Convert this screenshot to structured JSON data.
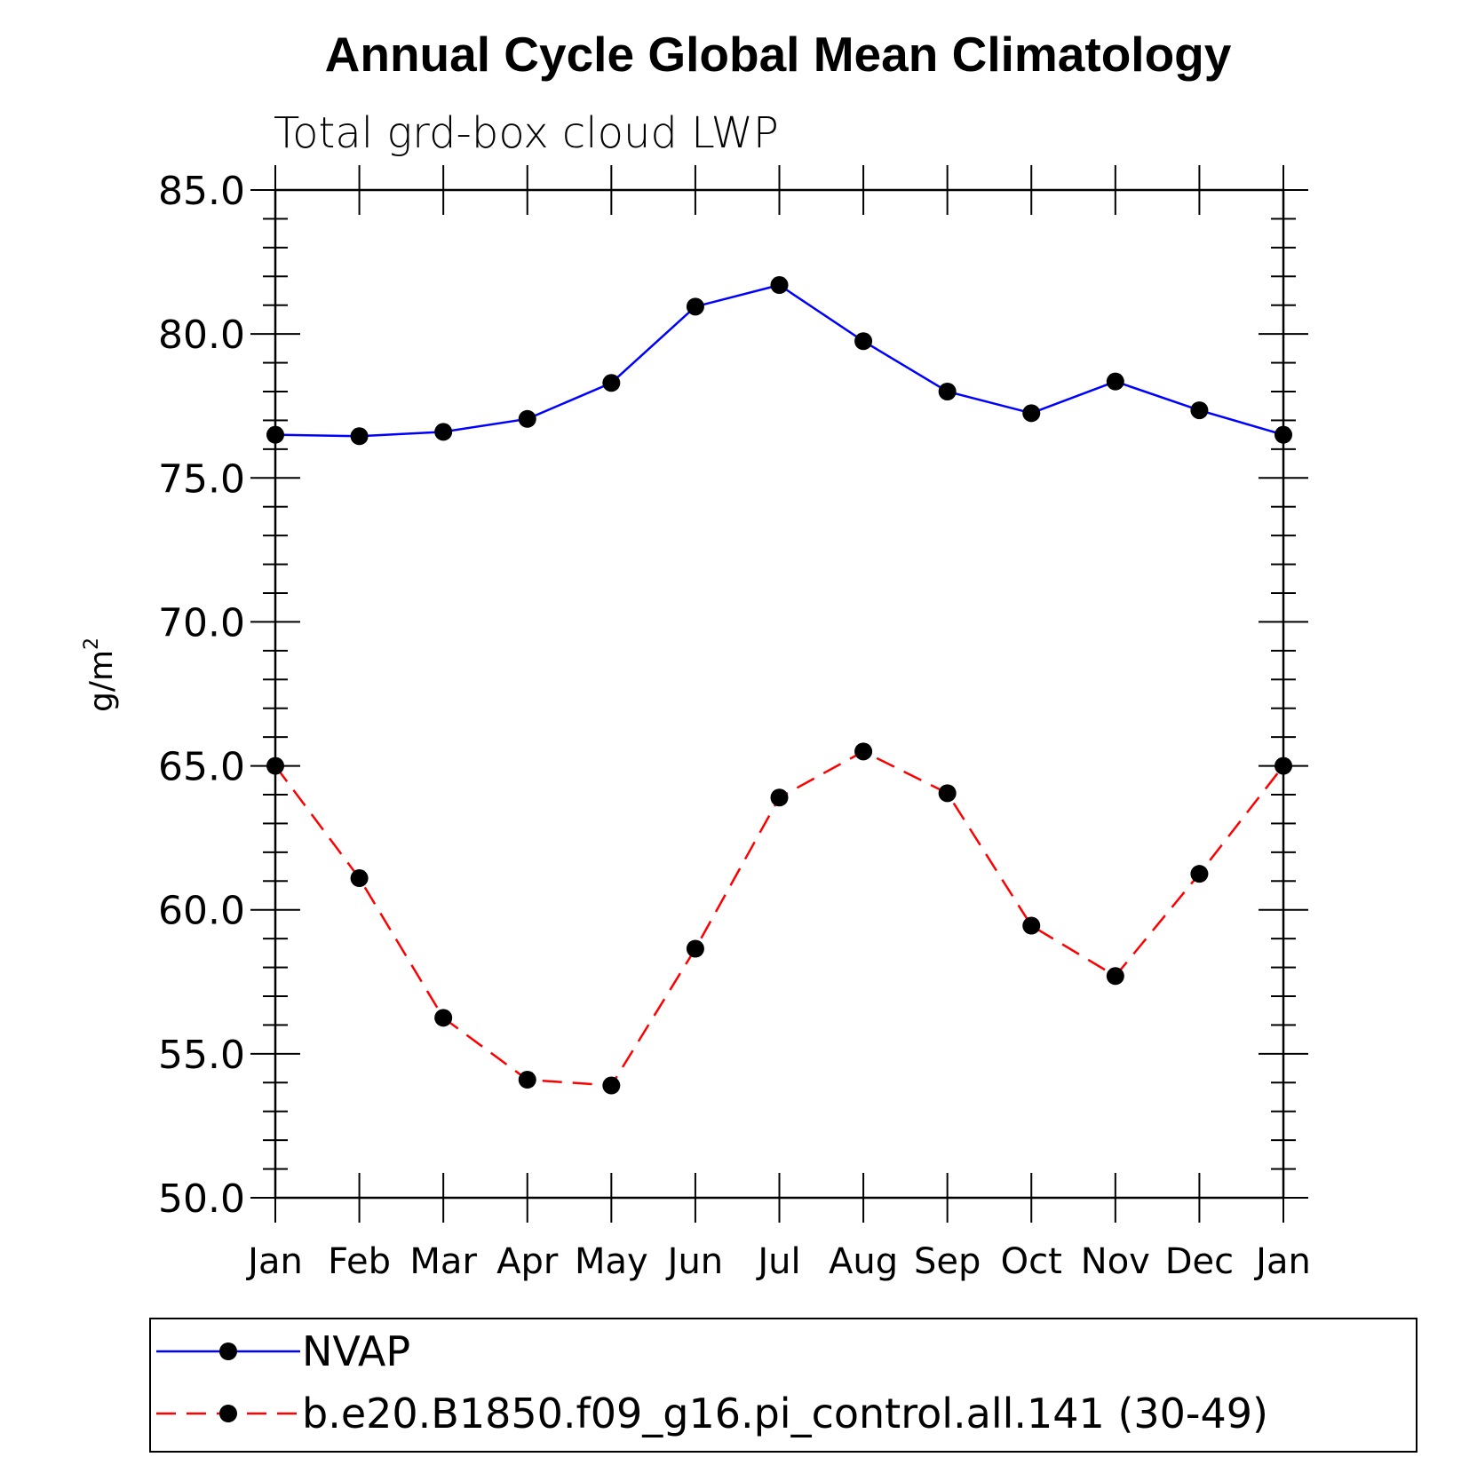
{
  "chart_data": {
    "type": "line",
    "title": "Annual Cycle Global Mean Climatology",
    "subtitle": "Total grd-box cloud LWP",
    "ylabel": "g/m",
    "ylabel_superscript": "2",
    "xlabel": "",
    "categories": [
      "Jan",
      "Feb",
      "Mar",
      "Apr",
      "May",
      "Jun",
      "Jul",
      "Aug",
      "Sep",
      "Oct",
      "Nov",
      "Dec",
      "Jan"
    ],
    "ylim": [
      50,
      85
    ],
    "yticks": [
      "50.0",
      "55.0",
      "60.0",
      "65.0",
      "70.0",
      "75.0",
      "80.0",
      "85.0"
    ],
    "grid": false,
    "legend_position": "bottom",
    "series": [
      {
        "name": "NVAP",
        "color": "#0000ff",
        "dash": "solid",
        "marker": "filled-circle",
        "values": [
          76.5,
          76.45,
          76.6,
          77.05,
          78.3,
          80.95,
          81.7,
          79.75,
          78.0,
          77.25,
          78.35,
          77.35,
          76.5
        ]
      },
      {
        "name": "b.e20.B1850.f09_g16.pi_control.all.141 (30-49)",
        "color": "#ff0000",
        "dash": "dashed",
        "marker": "filled-circle",
        "values": [
          65.0,
          61.1,
          56.25,
          54.1,
          53.9,
          58.65,
          63.9,
          65.5,
          64.05,
          59.45,
          57.7,
          61.25,
          65.0
        ]
      }
    ]
  }
}
